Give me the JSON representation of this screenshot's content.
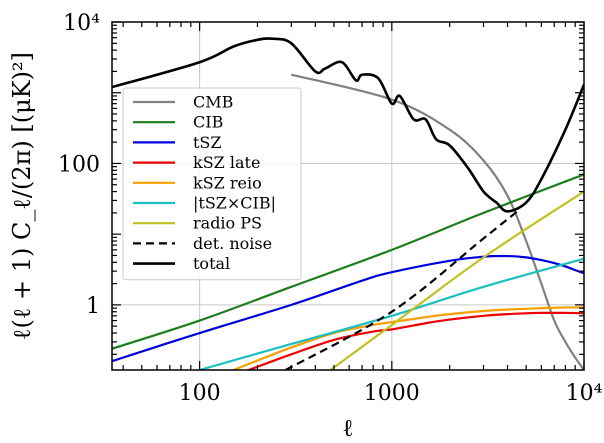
{
  "chart_data": {
    "type": "line",
    "xlabel": "ℓ",
    "ylabel": "ℓ(ℓ + 1) C_ℓ/(2π) [(μK)²]",
    "xscale": "log",
    "yscale": "log",
    "xlim": [
      35,
      10000
    ],
    "ylim": [
      0.12,
      10000
    ],
    "x_ticks": [
      {
        "value": 100,
        "label": "100"
      },
      {
        "value": 1000,
        "label": "1000"
      },
      {
        "value": 10000,
        "label": "10⁴"
      }
    ],
    "y_ticks": [
      {
        "value": 1,
        "label": "1"
      },
      {
        "value": 100,
        "label": "100"
      },
      {
        "value": 10000,
        "label": "10⁴"
      }
    ],
    "grid": true,
    "legend_position": "left",
    "series": [
      {
        "name": "CMB",
        "color": "#808080",
        "dash": "",
        "x": [
          300,
          1000,
          2000,
          3000,
          4000,
          5000,
          6000,
          7000,
          8000,
          9000,
          10000
        ],
        "y": [
          1800,
          800,
          300,
          110,
          35,
          8,
          2,
          0.6,
          0.3,
          0.18,
          0.12
        ]
      },
      {
        "name": "CIB",
        "color": "#1a7f1a",
        "dash": "",
        "x": [
          35,
          100,
          300,
          1000,
          3000,
          10000
        ],
        "y": [
          0.24,
          0.6,
          1.8,
          6,
          20,
          70
        ]
      },
      {
        "name": "tSZ",
        "color": "#0000dd",
        "dash": "",
        "x": [
          35,
          100,
          300,
          700,
          1000,
          2000,
          3000,
          4000,
          5000,
          6000,
          7000,
          8000,
          9000,
          10000
        ],
        "y": [
          0.16,
          0.4,
          1,
          2.2,
          2.9,
          4.2,
          4.8,
          4.9,
          4.7,
          4.3,
          3.9,
          3.5,
          3.1,
          2.8
        ]
      },
      {
        "name": "kSZ late",
        "color": "#ee0000",
        "dash": "",
        "x": [
          180,
          300,
          500,
          800,
          1000,
          1500,
          2000,
          3000,
          4000,
          5000,
          6000,
          7000,
          8000,
          10000
        ],
        "y": [
          0.12,
          0.2,
          0.32,
          0.42,
          0.45,
          0.55,
          0.62,
          0.7,
          0.74,
          0.76,
          0.77,
          0.77,
          0.77,
          0.76
        ]
      },
      {
        "name": "kSZ reio",
        "color": "#f5a000",
        "dash": "",
        "x": [
          150,
          300,
          500,
          800,
          1000,
          1500,
          2000,
          3000,
          4000,
          5000,
          6000,
          7000,
          8000,
          10000
        ],
        "y": [
          0.12,
          0.25,
          0.4,
          0.52,
          0.57,
          0.67,
          0.74,
          0.82,
          0.86,
          0.88,
          0.9,
          0.91,
          0.92,
          0.92
        ]
      },
      {
        "name": "|tSZ×CIB|",
        "color": "#1abfbf",
        "dash": "",
        "x": [
          100,
          300,
          1000,
          3000,
          10000
        ],
        "y": [
          0.12,
          0.28,
          0.7,
          1.8,
          4.5
        ]
      },
      {
        "name": "radio PS",
        "color": "#c0c020",
        "dash": "",
        "x": [
          480,
          1000,
          3000,
          10000
        ],
        "y": [
          0.12,
          0.52,
          4.7,
          40
        ]
      },
      {
        "name": "det. noise",
        "color": "#000000",
        "dash": "8,5",
        "x": [
          280,
          1000,
          3000,
          4500
        ],
        "y": [
          0.12,
          0.8,
          8.7,
          21
        ]
      },
      {
        "name": "total",
        "color": "#000000",
        "dash": "",
        "x": [
          35,
          100,
          150,
          200,
          240,
          300,
          400,
          450,
          550,
          650,
          700,
          850,
          1000,
          1100,
          1300,
          1500,
          1700,
          2000,
          2500,
          3000,
          3500,
          4000,
          5000,
          6000,
          8000,
          10000
        ],
        "y": [
          1200,
          2700,
          4500,
          5600,
          5800,
          5000,
          2000,
          2200,
          2700,
          1500,
          1800,
          1600,
          700,
          900,
          420,
          420,
          220,
          180,
          85,
          40,
          28,
          21,
          28,
          60,
          300,
          1300
        ]
      }
    ]
  }
}
